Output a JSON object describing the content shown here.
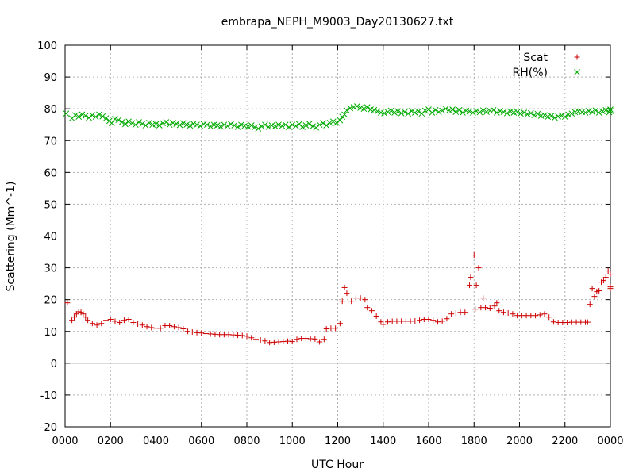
{
  "chart_data": {
    "type": "scatter",
    "title": "embrapa_NEPH_M9003_Day20130627.txt",
    "xlabel": "UTC Hour",
    "ylabel": "Scattering (Mm^-1)",
    "xlim": [
      0,
      24
    ],
    "ylim": [
      -20,
      100
    ],
    "xticks": [
      0,
      2,
      4,
      6,
      8,
      10,
      12,
      14,
      16,
      18,
      20,
      22,
      24
    ],
    "xtick_labels": [
      "0000",
      "0200",
      "0400",
      "0600",
      "0800",
      "1000",
      "1200",
      "1400",
      "1600",
      "1800",
      "2000",
      "2200",
      "0000"
    ],
    "yticks": [
      -20,
      -10,
      0,
      10,
      20,
      30,
      40,
      50,
      60,
      70,
      80,
      90,
      100
    ],
    "ytick_labels": [
      "-20",
      "-10",
      "0",
      "10",
      "20",
      "30",
      "40",
      "50",
      "60",
      "70",
      "80",
      "90",
      "100"
    ],
    "grid": true,
    "legend_position": "top-right",
    "zero_line": true,
    "series": [
      {
        "name": "Scat",
        "marker": "plus",
        "color": "#cc0000",
        "points": [
          [
            0.1,
            19
          ],
          [
            0.3,
            13.5
          ],
          [
            0.4,
            14.5
          ],
          [
            0.5,
            15.5
          ],
          [
            0.6,
            16.2
          ],
          [
            0.7,
            16
          ],
          [
            0.8,
            15.5
          ],
          [
            0.9,
            14.5
          ],
          [
            1.0,
            13.5
          ],
          [
            1.2,
            12.5
          ],
          [
            1.4,
            12
          ],
          [
            1.6,
            12.5
          ],
          [
            1.8,
            13.5
          ],
          [
            2.0,
            13.8
          ],
          [
            2.2,
            13.2
          ],
          [
            2.4,
            12.8
          ],
          [
            2.6,
            13.5
          ],
          [
            2.8,
            13.8
          ],
          [
            3.0,
            12.8
          ],
          [
            3.2,
            12.3
          ],
          [
            3.4,
            12
          ],
          [
            3.6,
            11.5
          ],
          [
            3.8,
            11.2
          ],
          [
            4.0,
            11
          ],
          [
            4.2,
            11
          ],
          [
            4.4,
            11.8
          ],
          [
            4.6,
            11.8
          ],
          [
            4.8,
            11.5
          ],
          [
            5.0,
            11.2
          ],
          [
            5.2,
            10.8
          ],
          [
            5.4,
            10
          ],
          [
            5.6,
            9.8
          ],
          [
            5.8,
            9.6
          ],
          [
            6.0,
            9.5
          ],
          [
            6.2,
            9.3
          ],
          [
            6.4,
            9.2
          ],
          [
            6.6,
            9.1
          ],
          [
            6.8,
            9
          ],
          [
            7.0,
            9
          ],
          [
            7.2,
            9
          ],
          [
            7.4,
            8.9
          ],
          [
            7.6,
            8.8
          ],
          [
            7.8,
            8.7
          ],
          [
            8.0,
            8.5
          ],
          [
            8.2,
            8
          ],
          [
            8.4,
            7.5
          ],
          [
            8.6,
            7.3
          ],
          [
            8.8,
            7
          ],
          [
            9.0,
            6.5
          ],
          [
            9.2,
            6.6
          ],
          [
            9.4,
            6.7
          ],
          [
            9.6,
            6.8
          ],
          [
            9.8,
            6.9
          ],
          [
            10.0,
            6.8
          ],
          [
            10.2,
            7.5
          ],
          [
            10.4,
            7.8
          ],
          [
            10.6,
            7.8
          ],
          [
            10.8,
            7.7
          ],
          [
            11.0,
            7.6
          ],
          [
            11.2,
            6.7
          ],
          [
            11.4,
            7.5
          ],
          [
            11.5,
            10.8
          ],
          [
            11.7,
            11
          ],
          [
            11.9,
            11
          ],
          [
            12.1,
            12.5
          ],
          [
            12.2,
            19.5
          ],
          [
            12.3,
            23.8
          ],
          [
            12.4,
            22
          ],
          [
            12.6,
            19.5
          ],
          [
            12.8,
            20.5
          ],
          [
            13.0,
            20.5
          ],
          [
            13.2,
            20
          ],
          [
            13.3,
            17.5
          ],
          [
            13.5,
            16.5
          ],
          [
            13.7,
            14.8
          ],
          [
            13.9,
            13
          ],
          [
            14.0,
            12.2
          ],
          [
            14.2,
            13
          ],
          [
            14.4,
            13.2
          ],
          [
            14.6,
            13.2
          ],
          [
            14.8,
            13.2
          ],
          [
            15.0,
            13.2
          ],
          [
            15.2,
            13.2
          ],
          [
            15.4,
            13.3
          ],
          [
            15.6,
            13.5
          ],
          [
            15.8,
            13.8
          ],
          [
            16.0,
            13.8
          ],
          [
            16.2,
            13.5
          ],
          [
            16.4,
            13
          ],
          [
            16.6,
            13.2
          ],
          [
            16.8,
            14
          ],
          [
            17.0,
            15.5
          ],
          [
            17.2,
            15.8
          ],
          [
            17.4,
            16
          ],
          [
            17.6,
            16
          ],
          [
            17.8,
            24.5
          ],
          [
            17.85,
            27
          ],
          [
            18.0,
            34
          ],
          [
            18.05,
            17
          ],
          [
            18.1,
            24.5
          ],
          [
            18.2,
            30
          ],
          [
            18.3,
            17.5
          ],
          [
            18.4,
            20.5
          ],
          [
            18.5,
            17.5
          ],
          [
            18.7,
            17.3
          ],
          [
            18.9,
            18
          ],
          [
            19.0,
            19
          ],
          [
            19.1,
            16.5
          ],
          [
            19.3,
            16
          ],
          [
            19.5,
            15.8
          ],
          [
            19.7,
            15.5
          ],
          [
            19.9,
            15
          ],
          [
            20.1,
            15
          ],
          [
            20.3,
            15
          ],
          [
            20.5,
            15
          ],
          [
            20.7,
            15
          ],
          [
            20.9,
            15.2
          ],
          [
            21.1,
            15.5
          ],
          [
            21.3,
            14.5
          ],
          [
            21.5,
            13
          ],
          [
            21.7,
            12.8
          ],
          [
            21.9,
            12.8
          ],
          [
            22.1,
            12.8
          ],
          [
            22.3,
            12.9
          ],
          [
            22.5,
            12.9
          ],
          [
            22.7,
            12.9
          ],
          [
            22.9,
            12.9
          ],
          [
            23.0,
            12.9
          ],
          [
            23.1,
            18.5
          ],
          [
            23.2,
            23.5
          ],
          [
            23.3,
            21
          ],
          [
            23.4,
            22.5
          ],
          [
            23.5,
            22.8
          ],
          [
            23.6,
            25.5
          ],
          [
            23.7,
            26
          ],
          [
            23.8,
            27
          ],
          [
            23.9,
            29
          ],
          [
            24.0,
            28
          ],
          [
            24.1,
            24
          ],
          [
            24.2,
            23.5
          ]
        ]
      },
      {
        "name": "RH(%)",
        "marker": "cross",
        "color": "#00aa00",
        "points": [
          [
            0.05,
            78.5
          ],
          [
            0.3,
            77
          ],
          [
            0.45,
            78
          ],
          [
            0.6,
            77.5
          ],
          [
            0.75,
            78.2
          ],
          [
            0.9,
            77.8
          ],
          [
            1.05,
            77.2
          ],
          [
            1.2,
            78
          ],
          [
            1.35,
            77.5
          ],
          [
            1.5,
            78.2
          ],
          [
            1.65,
            77.6
          ],
          [
            1.8,
            77
          ],
          [
            1.95,
            76.2
          ],
          [
            2.05,
            75.5
          ],
          [
            2.2,
            76.8
          ],
          [
            2.35,
            76.5
          ],
          [
            2.5,
            75.8
          ],
          [
            2.65,
            75.2
          ],
          [
            2.8,
            76
          ],
          [
            2.95,
            75.5
          ],
          [
            3.1,
            75
          ],
          [
            3.25,
            75.8
          ],
          [
            3.4,
            75.3
          ],
          [
            3.55,
            74.8
          ],
          [
            3.7,
            75.6
          ],
          [
            3.85,
            75
          ],
          [
            4.0,
            75.2
          ],
          [
            4.15,
            74.8
          ],
          [
            4.3,
            75.5
          ],
          [
            4.45,
            75.8
          ],
          [
            4.6,
            75
          ],
          [
            4.75,
            75.6
          ],
          [
            4.9,
            75.3
          ],
          [
            5.05,
            74.9
          ],
          [
            5.2,
            75.5
          ],
          [
            5.35,
            75
          ],
          [
            5.5,
            74.7
          ],
          [
            5.65,
            75.3
          ],
          [
            5.8,
            75
          ],
          [
            5.95,
            74.6
          ],
          [
            6.1,
            75.2
          ],
          [
            6.25,
            75
          ],
          [
            6.4,
            74.5
          ],
          [
            6.55,
            75
          ],
          [
            6.7,
            74.8
          ],
          [
            6.85,
            74.4
          ],
          [
            7.0,
            75
          ],
          [
            7.15,
            74.6
          ],
          [
            7.3,
            75.2
          ],
          [
            7.45,
            74.8
          ],
          [
            7.6,
            74.3
          ],
          [
            7.75,
            75
          ],
          [
            7.9,
            74.6
          ],
          [
            8.05,
            74.4
          ],
          [
            8.2,
            74.8
          ],
          [
            8.35,
            74.2
          ],
          [
            8.5,
            73.8
          ],
          [
            8.65,
            74.5
          ],
          [
            8.8,
            75
          ],
          [
            8.95,
            74.3
          ],
          [
            9.1,
            74.8
          ],
          [
            9.25,
            74.5
          ],
          [
            9.4,
            75
          ],
          [
            9.55,
            74.6
          ],
          [
            9.7,
            75
          ],
          [
            9.85,
            74.2
          ],
          [
            10.0,
            75
          ],
          [
            10.15,
            74.6
          ],
          [
            10.3,
            75.2
          ],
          [
            10.45,
            74.3
          ],
          [
            10.6,
            74.8
          ],
          [
            10.75,
            75.3
          ],
          [
            10.9,
            74.5
          ],
          [
            11.05,
            74.1
          ],
          [
            11.2,
            75
          ],
          [
            11.35,
            75.5
          ],
          [
            11.5,
            74.8
          ],
          [
            11.65,
            75.6
          ],
          [
            11.8,
            76
          ],
          [
            11.95,
            75.6
          ],
          [
            12.1,
            76.4
          ],
          [
            12.2,
            77.5
          ],
          [
            12.3,
            78.2
          ],
          [
            12.4,
            79.5
          ],
          [
            12.55,
            80.2
          ],
          [
            12.7,
            80.5
          ],
          [
            12.85,
            80.8
          ],
          [
            13.0,
            80.3
          ],
          [
            13.15,
            80
          ],
          [
            13.3,
            80.5
          ],
          [
            13.45,
            79.8
          ],
          [
            13.6,
            79.6
          ],
          [
            13.75,
            79.2
          ],
          [
            13.9,
            78.8
          ],
          [
            14.05,
            78.6
          ],
          [
            14.2,
            79
          ],
          [
            14.35,
            79.4
          ],
          [
            14.5,
            78.8
          ],
          [
            14.65,
            79.2
          ],
          [
            14.8,
            78.6
          ],
          [
            14.95,
            79
          ],
          [
            15.1,
            78.5
          ],
          [
            15.25,
            79.3
          ],
          [
            15.4,
            78.8
          ],
          [
            15.55,
            79.2
          ],
          [
            15.7,
            78.5
          ],
          [
            15.85,
            79.4
          ],
          [
            16.0,
            79.8
          ],
          [
            16.15,
            78.8
          ],
          [
            16.3,
            79.6
          ],
          [
            16.45,
            79
          ],
          [
            16.6,
            79.4
          ],
          [
            16.75,
            80
          ],
          [
            16.9,
            79.5
          ],
          [
            17.05,
            79.8
          ],
          [
            17.2,
            79
          ],
          [
            17.35,
            79.6
          ],
          [
            17.5,
            78.8
          ],
          [
            17.65,
            79.4
          ],
          [
            17.8,
            79.2
          ],
          [
            17.95,
            78.8
          ],
          [
            18.1,
            79.3
          ],
          [
            18.25,
            78.9
          ],
          [
            18.4,
            79.5
          ],
          [
            18.55,
            79
          ],
          [
            18.7,
            79.4
          ],
          [
            18.85,
            79.6
          ],
          [
            19.0,
            78.8
          ],
          [
            19.15,
            79.3
          ],
          [
            19.3,
            79
          ],
          [
            19.45,
            78.6
          ],
          [
            19.6,
            79.2
          ],
          [
            19.75,
            78.8
          ],
          [
            19.9,
            79
          ],
          [
            20.05,
            78.5
          ],
          [
            20.2,
            78.8
          ],
          [
            20.35,
            78.3
          ],
          [
            20.5,
            78.6
          ],
          [
            20.65,
            78
          ],
          [
            20.8,
            78.4
          ],
          [
            20.95,
            77.8
          ],
          [
            21.1,
            78
          ],
          [
            21.25,
            77.5
          ],
          [
            21.4,
            77.8
          ],
          [
            21.55,
            77.2
          ],
          [
            21.7,
            77.6
          ],
          [
            21.85,
            77.9
          ],
          [
            22.0,
            77.5
          ],
          [
            22.15,
            78.2
          ],
          [
            22.3,
            78.5
          ],
          [
            22.45,
            78.9
          ],
          [
            22.6,
            79.2
          ],
          [
            22.75,
            79
          ],
          [
            22.9,
            78.8
          ],
          [
            23.05,
            79.3
          ],
          [
            23.2,
            79
          ],
          [
            23.35,
            79.5
          ],
          [
            23.5,
            78.8
          ],
          [
            23.65,
            79.2
          ],
          [
            23.8,
            79.6
          ],
          [
            23.95,
            78.9
          ],
          [
            24.1,
            79.3
          ],
          [
            24.2,
            79.8
          ]
        ]
      }
    ]
  }
}
